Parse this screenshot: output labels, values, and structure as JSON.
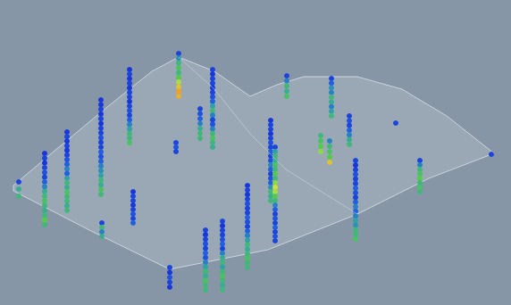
{
  "chart_data": {
    "type": "scatter",
    "xlim": [
      0,
      572
    ],
    "ylim": [
      0,
      342
    ],
    "tick_labels": false,
    "grid": false,
    "grade_range": [
      0,
      1
    ],
    "surface": [
      [
        15,
        208
      ],
      [
        60,
        170
      ],
      [
        120,
        120
      ],
      [
        170,
        80
      ],
      [
        200,
        64
      ],
      [
        240,
        80
      ],
      [
        280,
        108
      ],
      [
        310,
        95
      ],
      [
        340,
        86
      ],
      [
        400,
        86
      ],
      [
        450,
        100
      ],
      [
        500,
        130
      ],
      [
        553,
        172
      ],
      [
        480,
        200
      ],
      [
        400,
        240
      ],
      [
        300,
        280
      ],
      [
        190,
        302
      ],
      [
        100,
        258
      ],
      [
        15,
        214
      ]
    ],
    "ridge": [
      [
        200,
        64
      ],
      [
        240,
        100
      ],
      [
        280,
        150
      ],
      [
        320,
        190
      ],
      [
        360,
        215
      ],
      [
        400,
        240
      ]
    ],
    "holes": [
      {
        "x": 21,
        "top": 204,
        "bottom": 220,
        "grades": [
          0.1,
          0.45,
          0.5
        ]
      },
      {
        "x": 50,
        "top": 172,
        "bottom": 252,
        "grades": [
          0.05,
          0.1,
          0.05,
          0.1,
          0.15,
          0.1,
          0.2,
          0.3,
          0.45,
          0.5,
          0.55,
          0.5,
          0.45,
          0.5,
          0.6,
          0.5
        ]
      },
      {
        "x": 75,
        "top": 148,
        "bottom": 236,
        "grades": [
          0.05,
          0.1,
          0.05,
          0.1,
          0.05,
          0.1,
          0.15,
          0.2,
          0.3,
          0.2,
          0.4,
          0.5,
          0.45,
          0.55,
          0.5,
          0.5,
          0.45,
          0.5
        ]
      },
      {
        "x": 113,
        "top": 112,
        "bottom": 218,
        "grades": [
          0.05,
          0.05,
          0.1,
          0.05,
          0.1,
          0.05,
          0.1,
          0.1,
          0.15,
          0.1,
          0.1,
          0.2,
          0.15,
          0.2,
          0.3,
          0.35,
          0.4,
          0.5,
          0.45,
          0.55,
          0.5
        ]
      },
      {
        "x": 145,
        "top": 78,
        "bottom": 160,
        "grades": [
          0.05,
          0.1,
          0.05,
          0.1,
          0.05,
          0.1,
          0.1,
          0.05,
          0.1,
          0.15,
          0.1,
          0.2,
          0.3,
          0.4,
          0.5,
          0.5,
          0.55
        ]
      },
      {
        "x": 149,
        "top": 215,
        "bottom": 250,
        "grades": [
          0.05,
          0.1,
          0.1,
          0.05,
          0.1,
          0.15,
          0.1,
          0.2
        ]
      },
      {
        "x": 114,
        "top": 250,
        "bottom": 265,
        "grades": [
          0.1,
          0.5,
          0.3,
          0.45
        ]
      },
      {
        "x": 200,
        "top": 60,
        "bottom": 108,
        "grades": [
          0.1,
          0.35,
          0.5,
          0.55,
          0.5,
          0.6,
          0.75,
          0.9,
          1.0,
          0.95
        ]
      },
      {
        "x": 197,
        "top": 160,
        "bottom": 170,
        "grades": [
          0.1,
          0.15,
          0.1
        ]
      },
      {
        "x": 224,
        "top": 122,
        "bottom": 155,
        "grades": [
          0.1,
          0.15,
          0.2,
          0.3,
          0.45,
          0.5,
          0.5
        ]
      },
      {
        "x": 238,
        "top": 78,
        "bottom": 165,
        "grades": [
          0.1,
          0.05,
          0.1,
          0.1,
          0.05,
          0.1,
          0.15,
          0.2,
          0.4,
          0.5,
          0.3,
          0.1,
          0.15,
          0.3,
          0.5,
          0.55,
          0.5,
          0.45
        ]
      },
      {
        "x": 190,
        "top": 300,
        "bottom": 322,
        "grades": [
          0.1,
          0.05,
          0.15,
          0.1,
          0.05
        ]
      },
      {
        "x": 230,
        "top": 258,
        "bottom": 325,
        "grades": [
          0.1,
          0.05,
          0.1,
          0.15,
          0.1,
          0.2,
          0.15,
          0.3,
          0.4,
          0.5,
          0.45,
          0.55,
          0.5,
          0.5
        ]
      },
      {
        "x": 249,
        "top": 248,
        "bottom": 325,
        "grades": [
          0.1,
          0.05,
          0.1,
          0.1,
          0.15,
          0.2,
          0.1,
          0.3,
          0.45,
          0.5,
          0.4,
          0.5,
          0.55,
          0.5,
          0.45,
          0.5
        ]
      },
      {
        "x": 277,
        "top": 208,
        "bottom": 300,
        "grades": [
          0.05,
          0.1,
          0.05,
          0.1,
          0.15,
          0.1,
          0.1,
          0.2,
          0.15,
          0.1,
          0.2,
          0.3,
          0.4,
          0.5,
          0.45,
          0.5,
          0.55,
          0.5,
          0.5
        ]
      },
      {
        "x": 303,
        "top": 135,
        "bottom": 225,
        "grades": [
          0.05,
          0.1,
          0.1,
          0.05,
          0.1,
          0.15,
          0.1,
          0.2,
          0.1,
          0.15,
          0.3,
          0.2,
          0.1,
          0.15,
          0.2,
          0.35,
          0.5,
          0.45,
          0.5
        ]
      },
      {
        "x": 308,
        "top": 165,
        "bottom": 270,
        "grades": [
          0.1,
          0.4,
          0.5,
          0.45,
          0.55,
          0.5,
          0.6,
          0.5,
          0.7,
          0.8,
          0.75,
          0.6,
          0.5,
          0.3,
          0.2,
          0.1,
          0.15,
          0.1,
          0.2,
          0.1,
          0.15,
          0.1
        ]
      },
      {
        "x": 321,
        "top": 85,
        "bottom": 108,
        "grades": [
          0.1,
          0.3,
          0.5,
          0.45,
          0.55
        ]
      },
      {
        "x": 359,
        "top": 152,
        "bottom": 170,
        "grades": [
          0.5,
          0.55,
          0.6,
          0.7
        ]
      },
      {
        "x": 369,
        "top": 158,
        "bottom": 182,
        "grades": [
          0.3,
          0.5,
          0.55,
          0.6,
          0.9
        ]
      },
      {
        "x": 371,
        "top": 88,
        "bottom": 130,
        "grades": [
          0.1,
          0.2,
          0.35,
          0.3,
          0.5,
          0.45,
          0.3,
          0.4,
          0.5
        ]
      },
      {
        "x": 391,
        "top": 130,
        "bottom": 162,
        "grades": [
          0.1,
          0.15,
          0.1,
          0.2,
          0.3,
          0.45,
          0.5
        ]
      },
      {
        "x": 398,
        "top": 180,
        "bottom": 268,
        "grades": [
          0.1,
          0.05,
          0.1,
          0.15,
          0.1,
          0.1,
          0.2,
          0.15,
          0.1,
          0.2,
          0.3,
          0.2,
          0.3,
          0.4,
          0.35,
          0.5,
          0.5,
          0.55
        ]
      },
      {
        "x": 443,
        "top": 138,
        "bottom": 138,
        "grades": [
          0.1
        ]
      },
      {
        "x": 470,
        "top": 180,
        "bottom": 215,
        "grades": [
          0.1,
          0.3,
          0.5,
          0.55,
          0.6,
          0.5,
          0.55,
          0.5
        ]
      },
      {
        "x": 550,
        "top": 173,
        "bottom": 173,
        "grades": [
          0.1
        ]
      }
    ]
  }
}
